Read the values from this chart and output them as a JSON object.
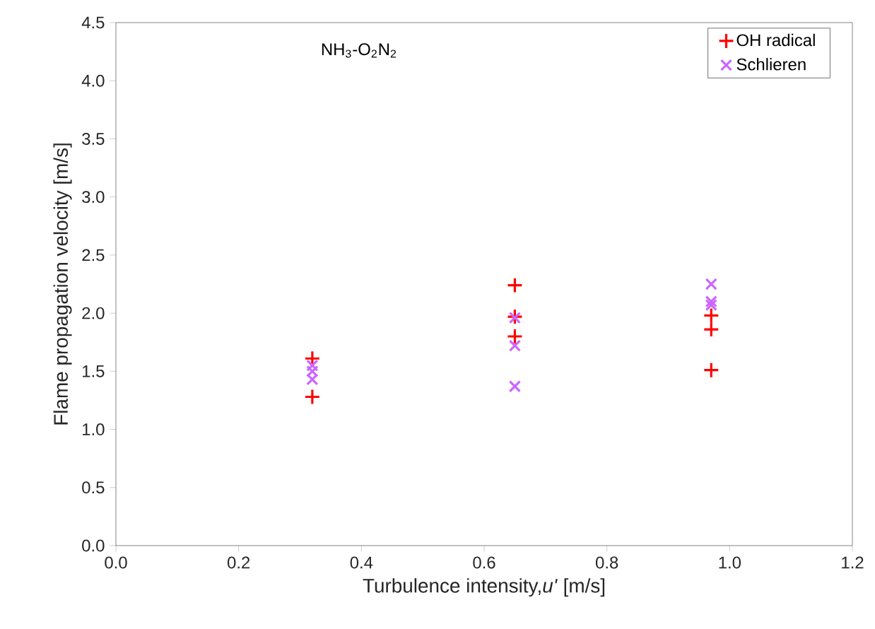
{
  "chart_data": {
    "type": "scatter",
    "title": "NH$_{3}$-O$_{2}$N$_{2}$",
    "xlabel": "Turbulence intensity,*u'* [m/s]",
    "ylabel": "Flame propagation velocity [m/s]",
    "xlim": [
      0,
      1.2
    ],
    "xticks": [
      {
        "value": 0,
        "label": "0.0"
      },
      0.2,
      0.4,
      0.6,
      0.8,
      {
        "value": 1,
        "label": "1.0"
      },
      1.2
    ],
    "ylim": [
      0,
      4.5
    ],
    "yticks": [
      {
        "value": 0,
        "label": "0.0"
      },
      0.5,
      {
        "value": 1,
        "label": "1.0"
      },
      1.5,
      {
        "value": 2,
        "label": "2.0"
      },
      2.5,
      {
        "value": 3,
        "label": "3.0"
      },
      3.5,
      {
        "value": 4,
        "label": "4.0"
      },
      4.5
    ],
    "grid": false,
    "legend": "top right",
    "series": [
      {
        "name": "OH radical",
        "color": "#ff0000",
        "marker": "cross",
        "x": [
          0.32,
          0.32,
          0.65,
          0.65,
          0.65,
          0.97,
          0.97,
          0.97
        ],
        "values": [
          1.61,
          1.28,
          2.24,
          1.97,
          1.8,
          1.98,
          1.86,
          1.51
        ]
      },
      {
        "name": "Schlieren",
        "color": "#cc66ff",
        "marker": "x",
        "x": [
          0.32,
          0.32,
          0.32,
          0.65,
          0.65,
          0.65,
          0.97,
          0.97,
          0.97
        ],
        "values": [
          1.55,
          1.5,
          1.43,
          1.96,
          1.72,
          1.37,
          2.25,
          2.1,
          2.07
        ]
      }
    ]
  }
}
